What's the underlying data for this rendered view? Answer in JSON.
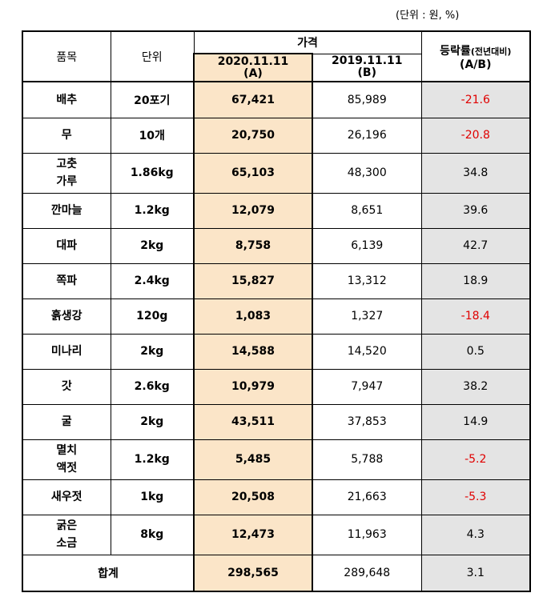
{
  "unit_note": "(단위 : 원, %)",
  "headers": {
    "item": "품목",
    "unit": "단위",
    "price_group": "가격",
    "date_a": "2020.11.11",
    "label_a": "(A)",
    "date_b": "2019.11.11",
    "label_b": "(B)",
    "rate_main": "등락률",
    "rate_sub": "(전년대비)",
    "rate_formula": "(A/B)"
  },
  "rows": [
    {
      "item": "배추",
      "unit": "20포기",
      "a": "67,421",
      "b": "85,989",
      "rate": "-21.6",
      "neg": true
    },
    {
      "item": "무",
      "unit": "10개",
      "a": "20,750",
      "b": "26,196",
      "rate": "-20.8",
      "neg": true
    },
    {
      "item": "고춧",
      "item2": "가루",
      "unit": "1.86kg",
      "a": "65,103",
      "b": "48,300",
      "rate": "34.8",
      "neg": false
    },
    {
      "item": "깐마늘",
      "unit": "1.2kg",
      "a": "12,079",
      "b": "8,651",
      "rate": "39.6",
      "neg": false
    },
    {
      "item": "대파",
      "unit": "2kg",
      "a": "8,758",
      "b": "6,139",
      "rate": "42.7",
      "neg": false
    },
    {
      "item": "쪽파",
      "unit": "2.4kg",
      "a": "15,827",
      "b": "13,312",
      "rate": "18.9",
      "neg": false
    },
    {
      "item": "흙생강",
      "unit": "120g",
      "a": "1,083",
      "b": "1,327",
      "rate": "-18.4",
      "neg": true
    },
    {
      "item": "미나리",
      "unit": "2kg",
      "a": "14,588",
      "b": "14,520",
      "rate": "0.5",
      "neg": false
    },
    {
      "item": "갓",
      "unit": "2.6kg",
      "a": "10,979",
      "b": "7,947",
      "rate": "38.2",
      "neg": false
    },
    {
      "item": "굴",
      "unit": "2kg",
      "a": "43,511",
      "b": "37,853",
      "rate": "14.9",
      "neg": false
    },
    {
      "item": "멸치",
      "item2": "액젓",
      "unit": "1.2kg",
      "a": "5,485",
      "b": "5,788",
      "rate": "-5.2",
      "neg": true
    },
    {
      "item": "새우젓",
      "unit": "1kg",
      "a": "20,508",
      "b": "21,663",
      "rate": "-5.3",
      "neg": true
    },
    {
      "item": "굵은",
      "item2": "소금",
      "unit": "8kg",
      "a": "12,473",
      "b": "11,963",
      "rate": "4.3",
      "neg": false
    }
  ],
  "total": {
    "label": "합계",
    "a": "298,565",
    "b": "289,648",
    "rate": "3.1"
  },
  "colors": {
    "highlight_a": "#fbe5c8",
    "rate_bg": "#e4e4e4",
    "negative": "#e00000"
  }
}
